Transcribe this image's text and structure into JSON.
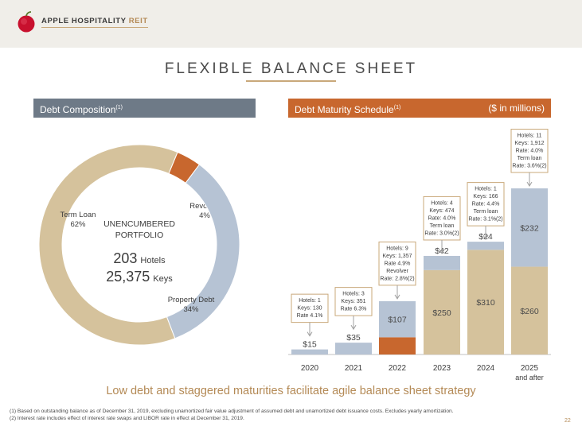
{
  "logo": {
    "text": "APPLE HOSPITALITY",
    "suffix": "REIT"
  },
  "title": "FLEXIBLE BALANCE SHEET",
  "left_header": {
    "label": "Debt Composition",
    "note": "(1)"
  },
  "right_header": {
    "label": "Debt Maturity Schedule",
    "note": "(1)",
    "unit": "($ in millions)"
  },
  "donut_center": {
    "line1": "UNENCUMBERED",
    "line2": "PORTFOLIO",
    "hotels_value": "203",
    "hotels_label": "Hotels",
    "keys_value": "25,375",
    "keys_label": "Keys"
  },
  "tagline": "Low debt and staggered maturities facilitate agile balance sheet strategy",
  "footnotes": [
    "(1)   Based on outstanding balance as of December 31, 2019, excluding unamortized fair value adjustment of assumed debt and unamortized debt issuance costs. Excludes yearly amortization.",
    "(2)   Interest rate includes effect of interest rate swaps and LIBOR rate in effect at December 31, 2019."
  ],
  "page_number": "22",
  "colors": {
    "tan": "#d5c29c",
    "blue": "#b6c3d4",
    "orange": "#c8672e",
    "gray_header": "#6e7a87",
    "gold": "#b48a56"
  },
  "chart_data": [
    {
      "type": "pie",
      "title": "Debt Composition",
      "slices": [
        {
          "label": "Revolver",
          "value": 4,
          "display": "4%",
          "color": "#c8672e"
        },
        {
          "label": "Property Debt",
          "value": 34,
          "display": "34%",
          "color": "#b6c3d4"
        },
        {
          "label": "Term Loan",
          "value": 62,
          "display": "62%",
          "color": "#d5c29c"
        }
      ]
    },
    {
      "type": "bar",
      "title": "Debt Maturity Schedule",
      "unit": "($ in millions)",
      "categories": [
        "2020",
        "2021",
        "2022",
        "2023",
        "2024",
        "2025"
      ],
      "category_sub": [
        "",
        "",
        "",
        "",
        "",
        "and after"
      ],
      "ylim": [
        0,
        492
      ],
      "series": [
        {
          "key": "revolver",
          "color": "#c8672e",
          "values": [
            0,
            0,
            51,
            0,
            0,
            0
          ],
          "labels": [
            "",
            "",
            "$51",
            "",
            "",
            ""
          ]
        },
        {
          "key": "term_loan",
          "color": "#d5c29c",
          "values": [
            0,
            0,
            0,
            250,
            310,
            260
          ],
          "labels": [
            "",
            "",
            "",
            "$250",
            "$310",
            "$260"
          ]
        },
        {
          "key": "property_debt",
          "color": "#b6c3d4",
          "values": [
            15,
            35,
            107,
            42,
            24,
            232
          ],
          "labels": [
            "$15",
            "$35",
            "$107",
            "$42",
            "$24",
            "$232"
          ]
        }
      ],
      "annotations": [
        [
          "Hotels: 1",
          "Keys: 130",
          "Rate 4.1%"
        ],
        [
          "Hotels: 3",
          "Keys: 351",
          "Rate 6.3%"
        ],
        [
          "Hotels: 9",
          "Keys: 1,357",
          "Rate 4.9%",
          "Revolver",
          "Rate: 2.8%(2)"
        ],
        [
          "Hotels: 4",
          "Keys: 474",
          "Rate: 4.0%",
          "Term loan",
          "Rate: 3.0%(2)"
        ],
        [
          "Hotels: 1",
          "Keys: 166",
          "Rate: 4.4%",
          "Term loan",
          "Rate: 3.1%(2)"
        ],
        [
          "Hotels: 11",
          "Keys: 1,912",
          "Rate: 4.0%",
          "Term loan",
          "Rate: 3.6%(2)"
        ]
      ]
    }
  ]
}
